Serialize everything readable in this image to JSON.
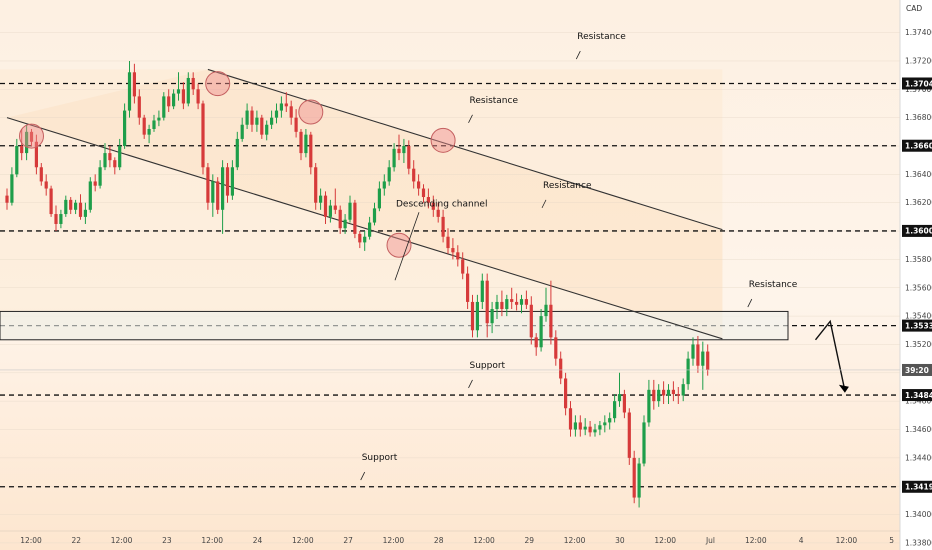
{
  "chart_data": {
    "type": "candlestick",
    "currency_label": "CAD",
    "ylim": [
      1.3375,
      1.3763
    ],
    "y_ticks": [
      1.374,
      1.372,
      1.37,
      1.368,
      1.366,
      1.364,
      1.362,
      1.36,
      1.358,
      1.356,
      1.354,
      1.352,
      1.35,
      1.348,
      1.346,
      1.344,
      1.342,
      1.34,
      1.338
    ],
    "y_tick_labels": [
      "1.37400",
      "1.37200",
      "1.37000",
      "1.36800",
      "1.36600",
      "1.36400",
      "1.36200",
      "1.36000",
      "1.35800",
      "1.35600",
      "1.35400",
      "1.35200",
      "1.35000",
      "1.34800",
      "1.34600",
      "1.34400",
      "1.34200",
      "1.34000",
      "1.33800"
    ],
    "x_ticks": [
      "12:00",
      "22",
      "12:00",
      "23",
      "12:00",
      "24",
      "12:00",
      "27",
      "12:00",
      "28",
      "12:00",
      "29",
      "12:00",
      "30",
      "12:00",
      "Jul",
      "12:00",
      "4",
      "12:00",
      "5"
    ],
    "levels": [
      {
        "value": 1.37041,
        "label": "1.37041"
      },
      {
        "value": 1.36602,
        "label": "1.36602"
      },
      {
        "value": 1.36001,
        "label": "1.36001"
      },
      {
        "value": 1.35333,
        "label": "1.35333"
      },
      {
        "value": 1.34843,
        "label": "1.34843"
      },
      {
        "value": 1.34196,
        "label": "1.34196"
      }
    ],
    "current_price": {
      "value": 1.3502,
      "label": "39:20"
    },
    "resistance_zone": [
      1.35233,
      1.35433
    ],
    "annotations": [
      {
        "text": "Descending channel",
        "anchor": [
          80,
          1.3609
        ]
      },
      {
        "text": "Resistance",
        "anchor": [
          117,
          1.3727
        ]
      },
      {
        "text": "Resistance",
        "anchor": [
          95,
          1.3682
        ]
      },
      {
        "text": "Resistance",
        "anchor": [
          110,
          1.3622
        ]
      },
      {
        "text": "Resistance",
        "anchor": [
          152,
          1.3552
        ]
      },
      {
        "text": "Support",
        "anchor": [
          95,
          1.3495
        ]
      },
      {
        "text": "Support",
        "anchor": [
          73,
          1.343
        ]
      }
    ],
    "channel": {
      "upper": [
        [
          41,
          1.3714
        ],
        [
          146,
          1.3601
        ]
      ],
      "lower": [
        [
          0,
          1.368
        ],
        [
          146,
          1.3524
        ]
      ]
    },
    "circles": [
      [
        5,
        1.3667
      ],
      [
        43,
        1.3704
      ],
      [
        62,
        1.3684
      ],
      [
        89,
        1.3664
      ],
      [
        80,
        1.359
      ]
    ],
    "projection": [
      [
        165,
        1.35233
      ],
      [
        168,
        1.35363
      ],
      [
        171,
        1.34873
      ]
    ],
    "candles": [
      [
        1.3625,
        1.363,
        1.3615,
        1.362
      ],
      [
        1.362,
        1.3645,
        1.3618,
        1.364
      ],
      [
        1.364,
        1.3665,
        1.3638,
        1.366
      ],
      [
        1.366,
        1.3672,
        1.365,
        1.3655
      ],
      [
        1.3655,
        1.3675,
        1.365,
        1.367
      ],
      [
        1.367,
        1.3672,
        1.366,
        1.3663
      ],
      [
        1.3663,
        1.3668,
        1.364,
        1.3645
      ],
      [
        1.3645,
        1.3648,
        1.3632,
        1.3635
      ],
      [
        1.3635,
        1.364,
        1.3625,
        1.363
      ],
      [
        1.363,
        1.3632,
        1.361,
        1.3612
      ],
      [
        1.3612,
        1.3618,
        1.36,
        1.3605
      ],
      [
        1.3605,
        1.3615,
        1.3602,
        1.3612
      ],
      [
        1.3612,
        1.3625,
        1.361,
        1.3622
      ],
      [
        1.3622,
        1.3624,
        1.3612,
        1.3615
      ],
      [
        1.3615,
        1.3622,
        1.3612,
        1.362
      ],
      [
        1.362,
        1.3626,
        1.3608,
        1.361
      ],
      [
        1.361,
        1.362,
        1.3605,
        1.3615
      ],
      [
        1.3615,
        1.3638,
        1.3613,
        1.3635
      ],
      [
        1.3635,
        1.364,
        1.3628,
        1.3632
      ],
      [
        1.3632,
        1.365,
        1.363,
        1.3645
      ],
      [
        1.3645,
        1.3662,
        1.3643,
        1.3655
      ],
      [
        1.3655,
        1.366,
        1.3645,
        1.365
      ],
      [
        1.365,
        1.3652,
        1.364,
        1.3645
      ],
      [
        1.3645,
        1.3665,
        1.3643,
        1.366
      ],
      [
        1.366,
        1.369,
        1.3658,
        1.3685
      ],
      [
        1.3685,
        1.372,
        1.368,
        1.3712
      ],
      [
        1.3712,
        1.3718,
        1.369,
        1.3695
      ],
      [
        1.3695,
        1.37,
        1.3675,
        1.368
      ],
      [
        1.368,
        1.3682,
        1.3665,
        1.3668
      ],
      [
        1.3668,
        1.3675,
        1.3662,
        1.3672
      ],
      [
        1.3672,
        1.3682,
        1.367,
        1.3678
      ],
      [
        1.3678,
        1.3685,
        1.3674,
        1.368
      ],
      [
        1.368,
        1.3698,
        1.3678,
        1.3695
      ],
      [
        1.3695,
        1.37,
        1.3684,
        1.3688
      ],
      [
        1.3688,
        1.37,
        1.3686,
        1.3697
      ],
      [
        1.3697,
        1.3712,
        1.3692,
        1.37
      ],
      [
        1.37,
        1.3705,
        1.3686,
        1.369
      ],
      [
        1.369,
        1.3712,
        1.3688,
        1.3708
      ],
      [
        1.3708,
        1.3712,
        1.3696,
        1.37
      ],
      [
        1.37,
        1.3704,
        1.3686,
        1.369
      ],
      [
        1.369,
        1.3692,
        1.364,
        1.3645
      ],
      [
        1.3645,
        1.3648,
        1.3615,
        1.362
      ],
      [
        1.362,
        1.364,
        1.361,
        1.3635
      ],
      [
        1.3635,
        1.3638,
        1.3612,
        1.3615
      ],
      [
        1.3615,
        1.365,
        1.3598,
        1.3645
      ],
      [
        1.3645,
        1.3648,
        1.362,
        1.3625
      ],
      [
        1.3625,
        1.365,
        1.3622,
        1.3645
      ],
      [
        1.3645,
        1.367,
        1.3643,
        1.3665
      ],
      [
        1.3665,
        1.368,
        1.3663,
        1.3675
      ],
      [
        1.3675,
        1.369,
        1.3672,
        1.3685
      ],
      [
        1.3685,
        1.3688,
        1.367,
        1.3675
      ],
      [
        1.3675,
        1.3685,
        1.367,
        1.368
      ],
      [
        1.368,
        1.3682,
        1.3665,
        1.3668
      ],
      [
        1.3668,
        1.3678,
        1.3664,
        1.3675
      ],
      [
        1.3675,
        1.3685,
        1.3672,
        1.368
      ],
      [
        1.368,
        1.369,
        1.3676,
        1.3685
      ],
      [
        1.3685,
        1.3695,
        1.368,
        1.369
      ],
      [
        1.369,
        1.3698,
        1.3684,
        1.3688
      ],
      [
        1.3688,
        1.3692,
        1.3675,
        1.368
      ],
      [
        1.368,
        1.3686,
        1.3666,
        1.367
      ],
      [
        1.367,
        1.3672,
        1.365,
        1.3655
      ],
      [
        1.3655,
        1.3672,
        1.3652,
        1.3668
      ],
      [
        1.3668,
        1.367,
        1.364,
        1.3645
      ],
      [
        1.3645,
        1.3648,
        1.3615,
        1.362
      ],
      [
        1.362,
        1.363,
        1.3615,
        1.3625
      ],
      [
        1.3625,
        1.3628,
        1.3605,
        1.361
      ],
      [
        1.361,
        1.3622,
        1.3606,
        1.3618
      ],
      [
        1.3618,
        1.363,
        1.3612,
        1.3615
      ],
      [
        1.3615,
        1.3618,
        1.3598,
        1.3602
      ],
      [
        1.3602,
        1.3612,
        1.3598,
        1.3608
      ],
      [
        1.3608,
        1.3625,
        1.3606,
        1.362
      ],
      [
        1.362,
        1.3622,
        1.3595,
        1.3598
      ],
      [
        1.3598,
        1.36,
        1.3588,
        1.3592
      ],
      [
        1.3592,
        1.36,
        1.3586,
        1.3596
      ],
      [
        1.3596,
        1.361,
        1.3594,
        1.3606
      ],
      [
        1.3606,
        1.362,
        1.3604,
        1.3616
      ],
      [
        1.3616,
        1.3635,
        1.3614,
        1.363
      ],
      [
        1.363,
        1.364,
        1.3625,
        1.3635
      ],
      [
        1.3635,
        1.365,
        1.3632,
        1.3645
      ],
      [
        1.3645,
        1.3662,
        1.3642,
        1.3658
      ],
      [
        1.3658,
        1.3668,
        1.365,
        1.3655
      ],
      [
        1.3655,
        1.3665,
        1.3648,
        1.366
      ],
      [
        1.366,
        1.3664,
        1.364,
        1.3644
      ],
      [
        1.3644,
        1.365,
        1.363,
        1.3635
      ],
      [
        1.3635,
        1.364,
        1.3625,
        1.363
      ],
      [
        1.363,
        1.3633,
        1.362,
        1.3624
      ],
      [
        1.3624,
        1.363,
        1.3616,
        1.362
      ],
      [
        1.362,
        1.3625,
        1.361,
        1.3615
      ],
      [
        1.3615,
        1.362,
        1.3606,
        1.361
      ],
      [
        1.361,
        1.3615,
        1.3592,
        1.3596
      ],
      [
        1.3596,
        1.3602,
        1.3584,
        1.3588
      ],
      [
        1.3588,
        1.3595,
        1.358,
        1.3585
      ],
      [
        1.3585,
        1.359,
        1.3575,
        1.358
      ],
      [
        1.358,
        1.3585,
        1.3566,
        1.357
      ],
      [
        1.357,
        1.3575,
        1.3545,
        1.355
      ],
      [
        1.355,
        1.3555,
        1.3525,
        1.353
      ],
      [
        1.353,
        1.3555,
        1.3525,
        1.355
      ],
      [
        1.355,
        1.357,
        1.3545,
        1.3565
      ],
      [
        1.3565,
        1.357,
        1.3525,
        1.3535
      ],
      [
        1.3535,
        1.355,
        1.3528,
        1.3545
      ],
      [
        1.3545,
        1.3555,
        1.3538,
        1.355
      ],
      [
        1.355,
        1.3558,
        1.354,
        1.3545
      ],
      [
        1.3545,
        1.3555,
        1.354,
        1.3552
      ],
      [
        1.3552,
        1.356,
        1.3545,
        1.355
      ],
      [
        1.355,
        1.3556,
        1.3544,
        1.3548
      ],
      [
        1.3548,
        1.3555,
        1.3542,
        1.3552
      ],
      [
        1.3552,
        1.3558,
        1.3545,
        1.3548
      ],
      [
        1.3548,
        1.3554,
        1.352,
        1.3525
      ],
      [
        1.3525,
        1.3528,
        1.3512,
        1.3518
      ],
      [
        1.3518,
        1.3545,
        1.3515,
        1.354
      ],
      [
        1.354,
        1.356,
        1.3536,
        1.3548
      ],
      [
        1.3548,
        1.3565,
        1.352,
        1.3525
      ],
      [
        1.3525,
        1.353,
        1.3505,
        1.351
      ],
      [
        1.351,
        1.3515,
        1.3492,
        1.3496
      ],
      [
        1.3496,
        1.35,
        1.347,
        1.3475
      ],
      [
        1.3475,
        1.348,
        1.3455,
        1.346
      ],
      [
        1.346,
        1.347,
        1.3455,
        1.3465
      ],
      [
        1.3465,
        1.347,
        1.3455,
        1.346
      ],
      [
        1.346,
        1.3468,
        1.3456,
        1.3462
      ],
      [
        1.3462,
        1.3466,
        1.3455,
        1.3458
      ],
      [
        1.3458,
        1.3464,
        1.3455,
        1.346
      ],
      [
        1.346,
        1.3466,
        1.3456,
        1.3463
      ],
      [
        1.3463,
        1.347,
        1.3458,
        1.3465
      ],
      [
        1.3465,
        1.3472,
        1.346,
        1.3468
      ],
      [
        1.3468,
        1.3485,
        1.3465,
        1.348
      ],
      [
        1.348,
        1.35,
        1.3476,
        1.3485
      ],
      [
        1.3485,
        1.3488,
        1.3468,
        1.3472
      ],
      [
        1.3472,
        1.3475,
        1.3435,
        1.344
      ],
      [
        1.344,
        1.3445,
        1.3408,
        1.3412
      ],
      [
        1.3412,
        1.344,
        1.3405,
        1.3436
      ],
      [
        1.3436,
        1.347,
        1.3434,
        1.3465
      ],
      [
        1.3465,
        1.3495,
        1.3462,
        1.3488
      ],
      [
        1.3488,
        1.3495,
        1.3474,
        1.348
      ],
      [
        1.348,
        1.3492,
        1.3476,
        1.3488
      ],
      [
        1.3488,
        1.3494,
        1.3478,
        1.3484
      ],
      [
        1.3484,
        1.3492,
        1.3478,
        1.3488
      ],
      [
        1.3488,
        1.3494,
        1.348,
        1.3485
      ],
      [
        1.3485,
        1.349,
        1.3478,
        1.3484
      ],
      [
        1.3484,
        1.3496,
        1.348,
        1.3492
      ],
      [
        1.3492,
        1.3515,
        1.3488,
        1.351
      ],
      [
        1.351,
        1.3525,
        1.3505,
        1.352
      ],
      [
        1.352,
        1.3526,
        1.35,
        1.3505
      ],
      [
        1.3505,
        1.3522,
        1.3488,
        1.3515
      ],
      [
        1.3515,
        1.352,
        1.3498,
        1.3502
      ]
    ]
  }
}
